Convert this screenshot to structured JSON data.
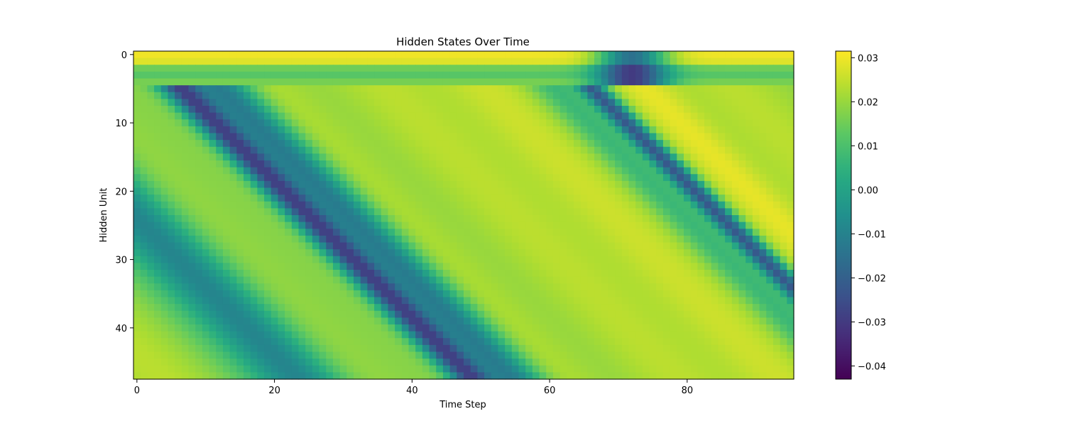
{
  "chart_data": {
    "type": "heatmap",
    "title": "Hidden States Over Time",
    "xlabel": "Time Step",
    "ylabel": "Hidden Unit",
    "x_ticks": [
      0,
      20,
      40,
      60,
      80
    ],
    "y_ticks": [
      0,
      10,
      20,
      30,
      40
    ],
    "n_time_steps": 96,
    "n_hidden_units": 48,
    "colormap": "viridis",
    "colorbar": {
      "vmin": -0.043,
      "vmax": 0.0315,
      "ticks": [
        0.03,
        0.02,
        0.01,
        0.0,
        -0.01,
        -0.02,
        -0.03,
        -0.04
      ],
      "tick_labels": [
        "0.03",
        "0.02",
        "0.01",
        "0.00",
        "−0.01",
        "−0.02",
        "−0.03",
        "−0.04"
      ]
    },
    "pattern": {
      "baseline": 0.021,
      "diagonal_slope_units_per_step": 1.0,
      "bands": [
        {
          "center_time_at_unit_0": -24,
          "width": 7,
          "value": -0.009
        },
        {
          "center_time_at_unit_0": 10,
          "width": 9,
          "value": 0.026
        },
        {
          "center_time_at_unit_0": 2,
          "width": 3.5,
          "value": -0.038
        },
        {
          "center_time_at_unit_0": 7,
          "width": 5,
          "value": -0.012
        },
        {
          "center_time_at_unit_0": 46,
          "width": 8,
          "value": 0.026
        },
        {
          "center_time_at_unit_0": 61,
          "width": 2.5,
          "value": -0.035
        },
        {
          "center_time_at_unit_0": 56,
          "width": 4,
          "value": 0.007
        },
        {
          "center_time_at_unit_0": 69,
          "width": 5,
          "value": 0.029
        }
      ],
      "top_rows": [
        {
          "unit": 0,
          "value": 0.03
        },
        {
          "unit": 1,
          "value": 0.028
        },
        {
          "unit": 2,
          "value": 0.015
        },
        {
          "unit": 3,
          "value": 0.012
        },
        {
          "unit": 4,
          "value": 0.016
        }
      ]
    }
  }
}
